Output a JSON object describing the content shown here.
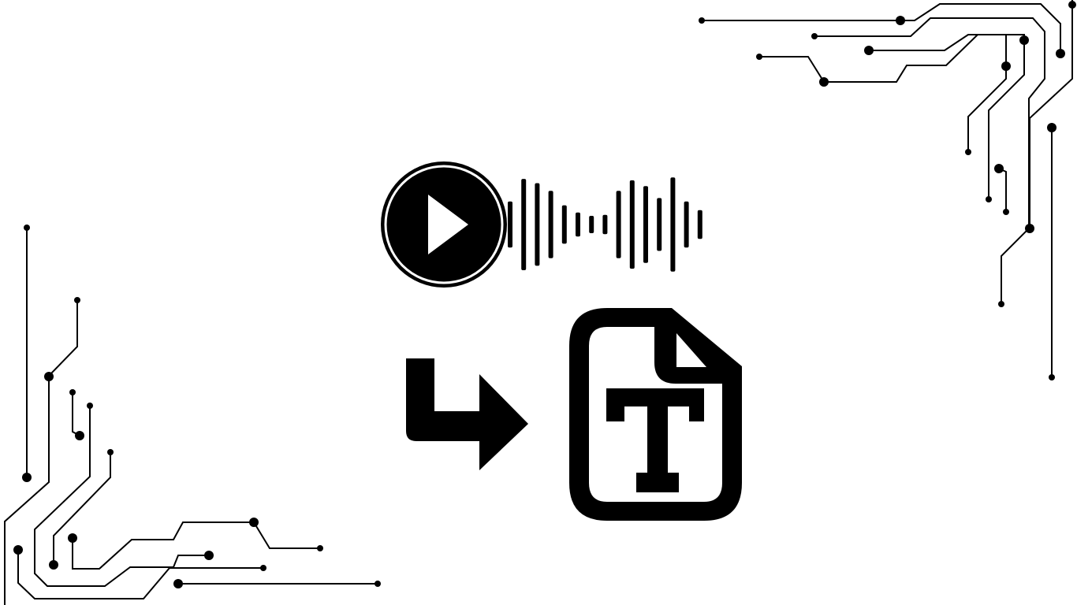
{
  "colors": {
    "background": "#ffffff",
    "ink": "#000000"
  },
  "icons": {
    "audio": "play-button-with-sound-waveform-icon",
    "arrow": "turn-right-arrow-icon",
    "document": "text-document-icon",
    "decoration": "circuit-board-traces"
  },
  "waveform": {
    "bar_levels": [
      0.48,
      0.95,
      0.86,
      0.7,
      0.4,
      0.25,
      0.18,
      0.2,
      0.7,
      0.92,
      0.8,
      0.55,
      0.98,
      0.48,
      0.3
    ]
  }
}
